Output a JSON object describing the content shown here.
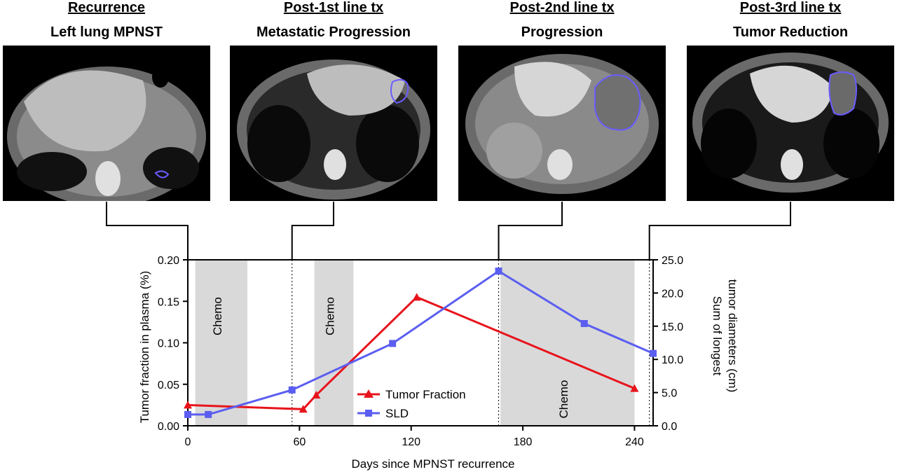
{
  "scans": [
    {
      "header": "Recurrence",
      "subheader": "Left lung MPNST"
    },
    {
      "header": "Post-1st line tx",
      "subheader": "Metastatic Progression"
    },
    {
      "header": "Post-2nd line tx",
      "subheader": "Progression"
    },
    {
      "header": "Post-3rd line tx",
      "subheader": "Tumor Reduction"
    }
  ],
  "chart_data": {
    "type": "line",
    "xlabel": "Days since MPNST recurrence",
    "ylabel": "Tumor fraction in plasma (%)",
    "y2label": "Sum of longest tumor diameters (cm)",
    "xlim": [
      0,
      250
    ],
    "xticks": [
      0,
      60,
      120,
      180,
      240
    ],
    "ylim": [
      0,
      0.2
    ],
    "yticks": [
      "0.00",
      "0.05",
      "0.10",
      "0.15",
      "0.20"
    ],
    "y2lim": [
      0,
      25
    ],
    "y2ticks": [
      "0.0",
      "5.0",
      "10.0",
      "15.0",
      "20.0",
      "25.0"
    ],
    "legend_position": "bottom-center",
    "series": [
      {
        "name": "Tumor Fraction",
        "axis": "left",
        "color": "#e8141c",
        "marker": "triangle",
        "x": [
          0,
          62,
          69,
          123,
          240
        ],
        "y": [
          0.025,
          0.02,
          0.037,
          0.155,
          0.045
        ]
      },
      {
        "name": "SLD",
        "axis": "right",
        "color": "#5b5ef0",
        "marker": "square",
        "x": [
          0,
          11,
          56,
          110,
          167,
          213,
          250
        ],
        "y": [
          1.7,
          1.7,
          5.4,
          12.4,
          23.3,
          15.4,
          10.9
        ]
      }
    ],
    "shaded_regions": [
      {
        "label": "Chemo",
        "x": [
          4,
          32
        ]
      },
      {
        "label": "Chemo",
        "x": [
          68,
          89
        ]
      },
      {
        "label": "Chemo",
        "x": [
          168,
          240
        ]
      }
    ],
    "event_lines": [
      56,
      167,
      248
    ],
    "scan_days": [
      0,
      56,
      167,
      248
    ]
  }
}
